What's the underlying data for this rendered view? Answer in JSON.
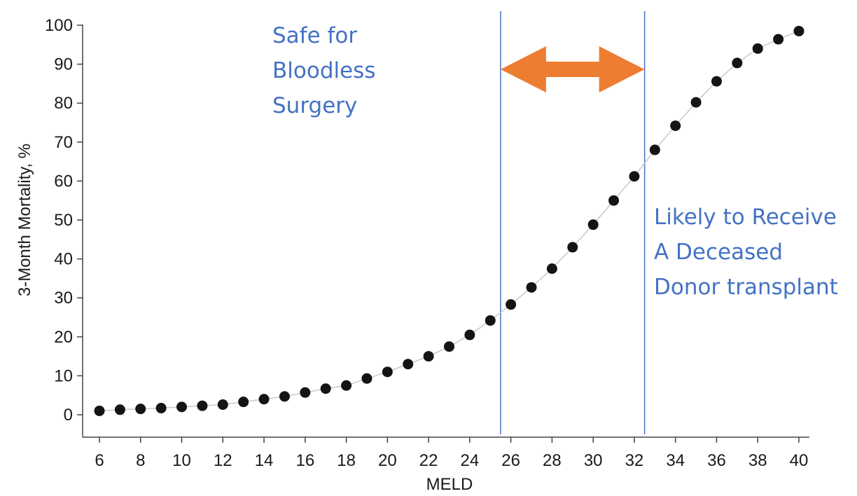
{
  "chart_data": {
    "type": "scatter",
    "title": "",
    "xlabel": "MELD",
    "ylabel": "3-Month Mortality, %",
    "xlim": [
      6,
      40
    ],
    "ylim": [
      0,
      100
    ],
    "x_ticks": [
      "6",
      "8",
      "10",
      "12",
      "14",
      "16",
      "18",
      "20",
      "22",
      "24",
      "26",
      "28",
      "30",
      "32",
      "34",
      "36",
      "38",
      "40"
    ],
    "y_ticks": [
      "0",
      "10",
      "20",
      "30",
      "40",
      "50",
      "60",
      "70",
      "80",
      "90",
      "100"
    ],
    "grid": false,
    "series": [
      {
        "x": [
          6,
          7,
          8,
          9,
          10,
          11,
          12,
          13,
          14,
          15,
          16,
          17,
          18,
          19,
          20,
          21,
          22,
          23,
          24,
          25,
          26,
          27,
          28,
          29,
          30,
          31,
          32,
          33,
          34,
          35,
          36,
          37,
          38,
          39,
          40
        ],
        "y": [
          1,
          1.3,
          1.5,
          1.7,
          2,
          2.3,
          2.6,
          3.3,
          4,
          4.7,
          5.7,
          6.7,
          7.5,
          9.3,
          11,
          13,
          15,
          17.5,
          20.5,
          24.2,
          28.3,
          32.7,
          37.5,
          43,
          48.8,
          55,
          61.2,
          68,
          74.2,
          80.2,
          85.6,
          90.3,
          94,
          96.4,
          98.5
        ],
        "marker_color": "#141414",
        "line_color": "#c8c8c8"
      }
    ],
    "vlines": [
      25.5,
      32.5
    ],
    "vline_color": "#4472c4",
    "arrow_color": "#ed7d31",
    "annotations": [
      {
        "id": "safe",
        "lines": [
          "Safe for",
          "Bloodless",
          "Surgery"
        ],
        "color": "#4472c4"
      },
      {
        "id": "likely",
        "lines": [
          "Likely to Receive",
          "A Deceased",
          "Donor transplant"
        ],
        "color": "#4472c4"
      }
    ]
  }
}
